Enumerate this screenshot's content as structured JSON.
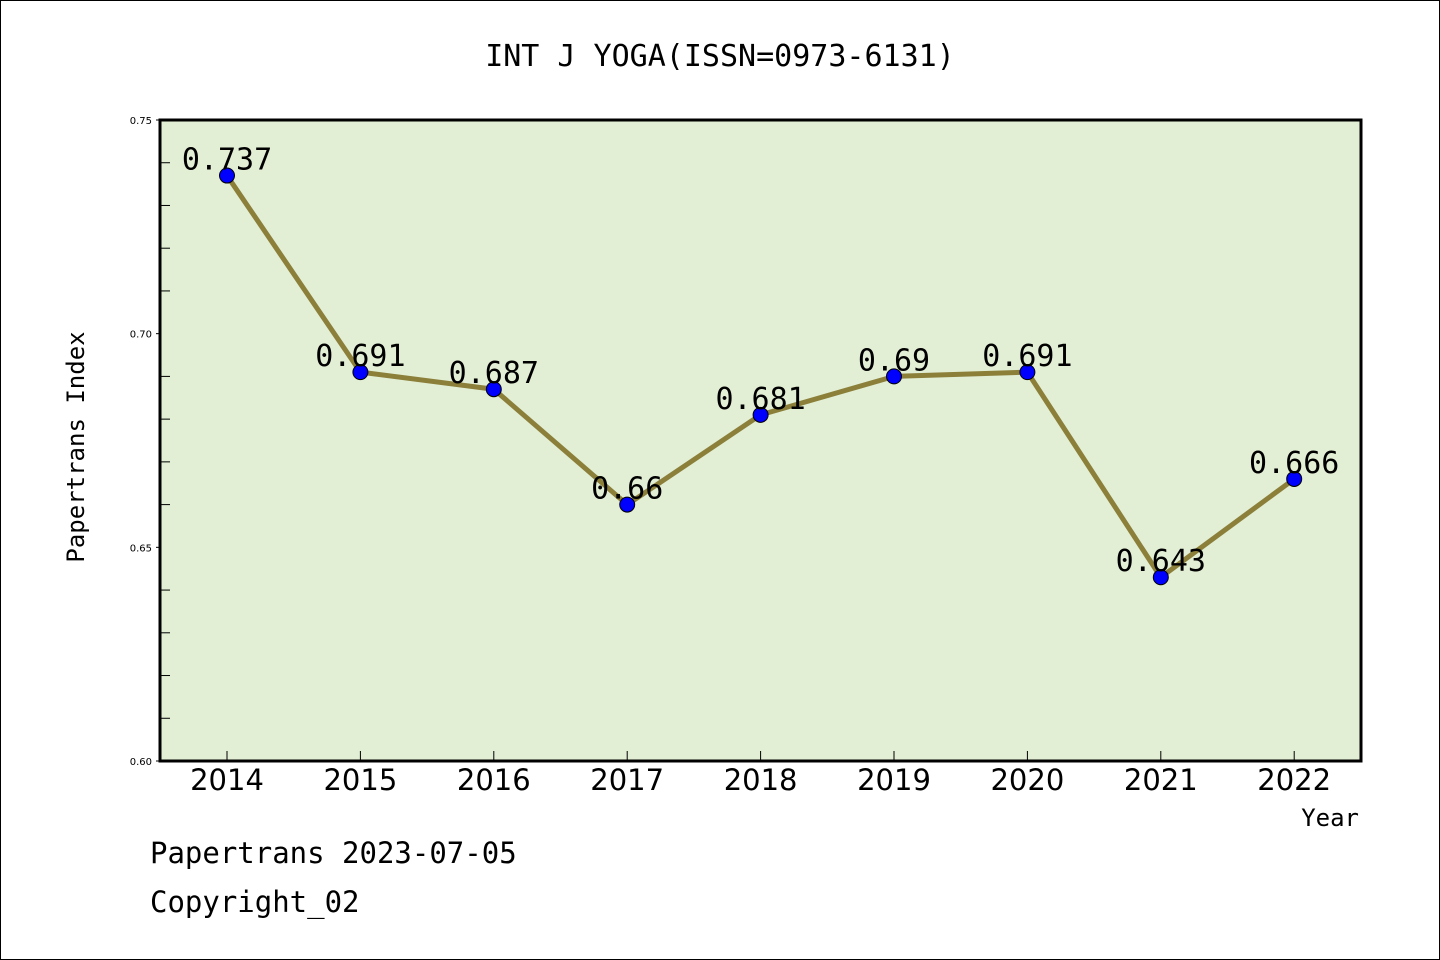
{
  "chart_data": {
    "type": "line",
    "title": "INT J YOGA(ISSN=0973-6131)",
    "xlabel": "Year",
    "ylabel": "Papertrans Index",
    "categories": [
      "2014",
      "2015",
      "2016",
      "2017",
      "2018",
      "2019",
      "2020",
      "2021",
      "2022"
    ],
    "series": [
      {
        "values": [
          0.737,
          0.691,
          0.687,
          0.66,
          0.681,
          0.69,
          0.691,
          0.643,
          0.666
        ],
        "labels": [
          "0.737",
          "0.691",
          "0.687",
          "0.66",
          "0.681",
          "0.69",
          "0.691",
          "0.643",
          "0.666"
        ]
      }
    ],
    "ylim": [
      0.6,
      0.75
    ],
    "y_ticks": [
      "0.60",
      "0.65",
      "0.70",
      "0.75"
    ],
    "grid": false,
    "colors": {
      "plot_background": "#e2efd5",
      "line": "#8b7f3a",
      "marker": "#0000ff"
    }
  },
  "footer": {
    "date_line": "Papertrans 2023-07-05",
    "copyright": "Copyright_02"
  }
}
